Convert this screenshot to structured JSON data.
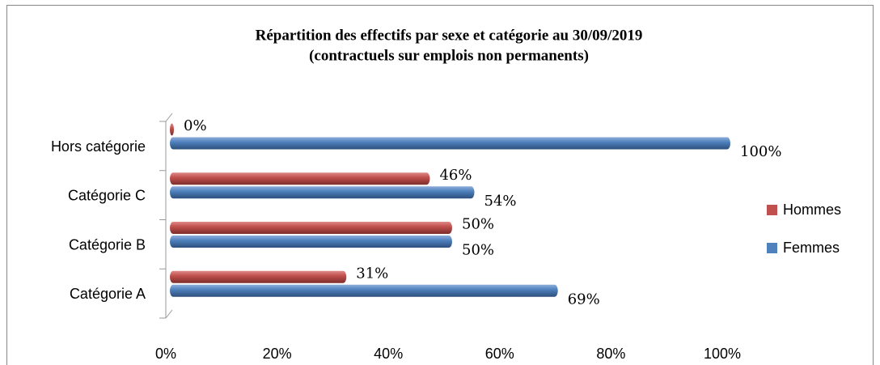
{
  "chart_data": {
    "type": "hbar",
    "title": "Répartition des effectifs par sexe et catégorie au 30/09/2019",
    "subtitle": "(contractuels sur emplois non permanents)",
    "categories": [
      "Catégorie A",
      "Catégorie B",
      "Catégorie C",
      "Hors catégorie"
    ],
    "series": [
      {
        "name": "Femmes",
        "color": "#4f81bd",
        "values": [
          69,
          50,
          54,
          100
        ],
        "value_labels": [
          "69%",
          "50%",
          "54%",
          "100%"
        ]
      },
      {
        "name": "Hommes",
        "color": "#c0504d",
        "values": [
          31,
          50,
          46,
          0
        ],
        "value_labels": [
          "31%",
          "50%",
          "46%",
          "0%"
        ]
      }
    ],
    "xlim": [
      0,
      100
    ],
    "xticks": [
      {
        "value": 0,
        "label": "0%"
      },
      {
        "value": 20,
        "label": "20%"
      },
      {
        "value": 40,
        "label": "40%"
      },
      {
        "value": 60,
        "label": "60%"
      },
      {
        "value": 80,
        "label": "80%"
      },
      {
        "value": 100,
        "label": "100%"
      }
    ],
    "grid": false,
    "legend": "right"
  }
}
